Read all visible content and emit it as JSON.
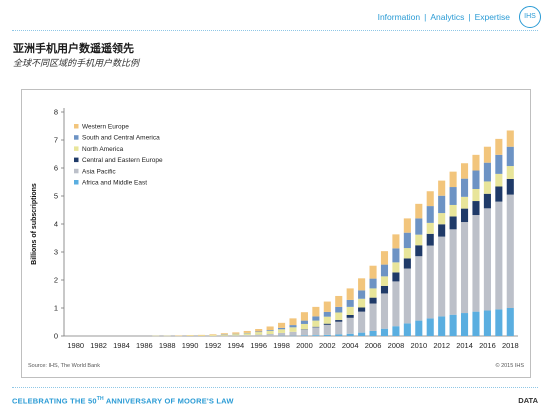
{
  "nav": {
    "items": [
      "Information",
      "Analytics",
      "Expertise"
    ],
    "separator": "|",
    "logo": "IHS"
  },
  "title": "亚洲手机用户数遥遥领先",
  "subtitle": "全球不同区域的手机用户数比例",
  "footer": {
    "left_pre": "CELEBRATING THE 50",
    "left_sup": "TH",
    "left_post": " ANNIVERSARY OF MOORE'S LAW",
    "right": "DATA"
  },
  "chart_data": {
    "type": "bar",
    "stacked": true,
    "ylabel": "Billions of subscriptions",
    "ylim": [
      0,
      8
    ],
    "yticks": [
      0,
      1,
      2,
      3,
      4,
      5,
      6,
      7,
      8
    ],
    "x_tick_labels": [
      "1980",
      "1982",
      "1984",
      "1986",
      "1988",
      "1990",
      "1992",
      "1994",
      "1996",
      "1998",
      "2000",
      "2002",
      "2004",
      "2006",
      "2008",
      "2010",
      "2012",
      "2014",
      "2016",
      "2018"
    ],
    "source": "Source: IHS, The World Bank",
    "copyright": "© 2015 IHS",
    "legend_position": "top-left",
    "categories": [
      "1980",
      "1981",
      "1982",
      "1983",
      "1984",
      "1985",
      "1986",
      "1987",
      "1988",
      "1989",
      "1990",
      "1991",
      "1992",
      "1993",
      "1994",
      "1995",
      "1996",
      "1997",
      "1998",
      "1999",
      "2000",
      "2001",
      "2002",
      "2003",
      "2004",
      "2005",
      "2006",
      "2007",
      "2008",
      "2009",
      "2010",
      "2011",
      "2012",
      "2013",
      "2014",
      "2015",
      "2016",
      "2017",
      "2018"
    ],
    "series": [
      {
        "name": "Africa and Middle East",
        "color": "#5aaee0",
        "values": [
          0,
          0,
          0,
          0,
          0,
          0,
          0,
          0,
          0,
          0,
          0,
          0,
          0,
          0,
          0,
          0,
          0,
          0,
          0.01,
          0.01,
          0.02,
          0.03,
          0.04,
          0.06,
          0.08,
          0.12,
          0.18,
          0.26,
          0.35,
          0.45,
          0.55,
          0.63,
          0.7,
          0.76,
          0.82,
          0.87,
          0.91,
          0.95,
          1.0
        ]
      },
      {
        "name": "Asia Pacific",
        "color": "#bcc0c9",
        "values": [
          0,
          0,
          0,
          0,
          0,
          0,
          0,
          0,
          0,
          0,
          0,
          0,
          0,
          0.01,
          0.02,
          0.03,
          0.05,
          0.07,
          0.1,
          0.14,
          0.21,
          0.28,
          0.36,
          0.45,
          0.57,
          0.75,
          0.98,
          1.26,
          1.6,
          1.96,
          2.3,
          2.6,
          2.85,
          3.05,
          3.25,
          3.45,
          3.65,
          3.85,
          4.05
        ]
      },
      {
        "name": "Central and Eastern Europe",
        "color": "#1f3a68",
        "values": [
          0,
          0,
          0,
          0,
          0,
          0,
          0,
          0,
          0,
          0,
          0,
          0,
          0,
          0,
          0,
          0,
          0,
          0,
          0,
          0,
          0.01,
          0.02,
          0.04,
          0.06,
          0.1,
          0.15,
          0.21,
          0.27,
          0.32,
          0.36,
          0.39,
          0.42,
          0.44,
          0.46,
          0.48,
          0.5,
          0.52,
          0.54,
          0.56
        ]
      },
      {
        "name": "North America",
        "color": "#e8e59a",
        "values": [
          0,
          0,
          0,
          0,
          0,
          0,
          0,
          0.01,
          0.01,
          0.01,
          0.02,
          0.02,
          0.03,
          0.04,
          0.05,
          0.07,
          0.09,
          0.11,
          0.13,
          0.16,
          0.19,
          0.22,
          0.25,
          0.27,
          0.29,
          0.31,
          0.33,
          0.34,
          0.36,
          0.37,
          0.38,
          0.39,
          0.4,
          0.41,
          0.42,
          0.43,
          0.44,
          0.45,
          0.46
        ]
      },
      {
        "name": "South and Central America",
        "color": "#6d93c4",
        "values": [
          0,
          0,
          0,
          0,
          0,
          0,
          0,
          0,
          0,
          0,
          0,
          0,
          0,
          0.01,
          0.01,
          0.01,
          0.02,
          0.03,
          0.05,
          0.08,
          0.12,
          0.15,
          0.17,
          0.2,
          0.25,
          0.3,
          0.35,
          0.42,
          0.5,
          0.55,
          0.58,
          0.6,
          0.62,
          0.64,
          0.65,
          0.66,
          0.67,
          0.68,
          0.69
        ]
      },
      {
        "name": "Western Europe",
        "color": "#f2c57c",
        "values": [
          0,
          0,
          0,
          0,
          0,
          0,
          0,
          0,
          0,
          0.01,
          0.01,
          0.02,
          0.03,
          0.04,
          0.05,
          0.07,
          0.09,
          0.13,
          0.18,
          0.24,
          0.3,
          0.34,
          0.37,
          0.39,
          0.41,
          0.43,
          0.46,
          0.48,
          0.5,
          0.51,
          0.52,
          0.53,
          0.54,
          0.55,
          0.55,
          0.56,
          0.57,
          0.57,
          0.58
        ]
      }
    ]
  }
}
